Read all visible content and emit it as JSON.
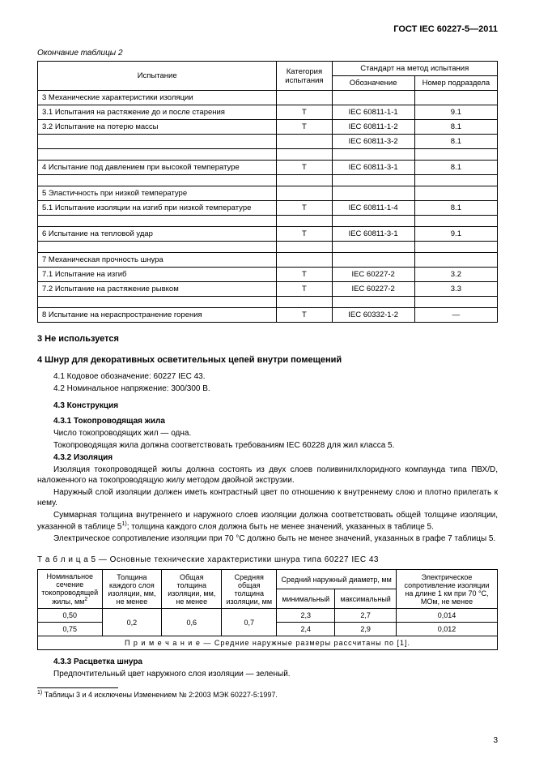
{
  "doc": {
    "header": "ГОСТ IEC 60227-5—2011",
    "page_number": "3"
  },
  "table2": {
    "caption": "Окончание таблицы 2",
    "headers": {
      "test": "Испытание",
      "category": "Категория испытания",
      "standard_group": "Стандарт на метод испытания",
      "designation": "Обозначение",
      "subclause": "Номер подраздела"
    },
    "rows": [
      {
        "text": "3  Механические характеристики изоляции",
        "cat": "",
        "std": "",
        "sub": "",
        "indent": 0
      },
      {
        "text": "3.1  Испытания на растяжение до и после старения",
        "cat": "Т",
        "std": "IEC 60811-1-1",
        "sub": "9.1",
        "indent": 1
      },
      {
        "text": "3.2  Испытание на потерю массы",
        "cat": "Т",
        "std": "IEC 60811-1-2",
        "sub": "8.1",
        "indent": 1
      },
      {
        "text": "",
        "cat": "",
        "std": "IEC 60811-3-2",
        "sub": "8.1",
        "indent": 0,
        "spacer_after": true
      },
      {
        "text": "4  Испытание под давлением при высокой температуре",
        "cat": "Т",
        "std": "IEC 60811-3-1",
        "sub": "8.1",
        "indent": 0,
        "spacer_after": true
      },
      {
        "text": "5  Эластичность при низкой температуре",
        "cat": "",
        "std": "",
        "sub": "",
        "indent": 0
      },
      {
        "text": "5.1  Испытание изоляции на изгиб при низкой температуре",
        "cat": "Т",
        "std": "IEC 60811-1-4",
        "sub": "8.1",
        "indent": 1,
        "spacer_after": true
      },
      {
        "text": "6  Испытание на тепловой удар",
        "cat": "Т",
        "std": "IEC 60811-3-1",
        "sub": "9.1",
        "indent": 0,
        "spacer_after": true
      },
      {
        "text": "7  Механическая прочность шнура",
        "cat": "",
        "std": "",
        "sub": "",
        "indent": 0
      },
      {
        "text": "7.1  Испытание на изгиб",
        "cat": "Т",
        "std": "IEC 60227-2",
        "sub": "3.2",
        "indent": 1
      },
      {
        "text": "7.2  Испытание на растяжение рывком",
        "cat": "Т",
        "std": "IEC 60227-2",
        "sub": "3.3",
        "indent": 1,
        "spacer_after": true
      },
      {
        "text": "8  Испытание на нераспространение горения",
        "cat": "Т",
        "std": "IEC 60332-1-2",
        "sub": "—",
        "indent": 0
      }
    ]
  },
  "sections": {
    "s3_title": "3  Не используется",
    "s4_title": "4  Шнур для декоративных осветительных цепей внутри помещений",
    "s4_1": "4.1  Кодовое обозначение: 60227 IEC 43.",
    "s4_2": "4.2  Номинальное напряжение: 300/300 В.",
    "s4_3_title": "4.3  Конструкция",
    "s4_3_1_title": "4.3.1  Токопроводящая жила",
    "s4_3_1_p1": "Число токопроводящих жил — одна.",
    "s4_3_1_p2": "Токопроводящая жила должна соответствовать требованиям IEC 60228 для жил класса 5.",
    "s4_3_2_title": "4.3.2  Изоляция",
    "s4_3_2_p1": "Изоляция токопроводящей жилы должна состоять из двух слоев поливинилхлоридного компаунда типа ПВХ/D, наложенного на токопроводящую жилу методом двойной экструзии.",
    "s4_3_2_p2": "Наружный слой изоляции должен иметь контрастный цвет по отношению к внутреннему слою и плотно прилегать к нему.",
    "s4_3_2_p3_a": "Суммарная толщина внутреннего и наружного слоев изоляции должна соответствовать общей толщине изоляции, указанной в таблице 5",
    "s4_3_2_p3_b": "; толщина каждого слоя должна быть не менее значений, указанных в таблице 5.",
    "s4_3_2_p4": "Электрическое сопротивление изоляции при 70 °С должно быть не менее значений, указанных в графе 7 таблицы 5.",
    "s4_3_3_title": "4.3.3  Расцветка шнура",
    "s4_3_3_p1": "Предпочтительный цвет наружного слоя изоляции — зеленый."
  },
  "table5": {
    "caption": "Т а б л и ц а  5 — Основные технические характеристики шнура типа 60227 IEC 43",
    "headers": {
      "c1a": "Номинальное сечение токопроводящей жилы, мм",
      "c2": "Толщина каждого слоя изоляции, мм, не менее",
      "c3": "Общая толщина изоляции, мм, не менее",
      "c4": "Средняя общая толщина изоляции, мм",
      "c5": "Средний наружный диаметр, мм",
      "c6": "Электрическое сопротивление изоляции на длине 1 км при 70 °С, МОм, не менее",
      "c5a": "минимальный",
      "c5b": "максимальный"
    },
    "rows": [
      {
        "c1": "0,50",
        "c2": "0,2",
        "c3": "0,6",
        "c4": "0,7",
        "c5a": "2,3",
        "c5b": "2,7",
        "c6": "0,014"
      },
      {
        "c1": "0,75",
        "c2": "0,2",
        "c3": "0,6",
        "c4": "0,7",
        "c5a": "2,4",
        "c5b": "2,9",
        "c6": "0,012"
      }
    ],
    "note_label": "П р и м е ч а н и е",
    "note_text": " — Средние наружные размеры рассчитаны по [1]."
  },
  "footnote": {
    "marker": "1)",
    "text": " Таблицы 3 и 4 исключены Изменением № 2:2003 МЭК 60227-5:1997."
  }
}
